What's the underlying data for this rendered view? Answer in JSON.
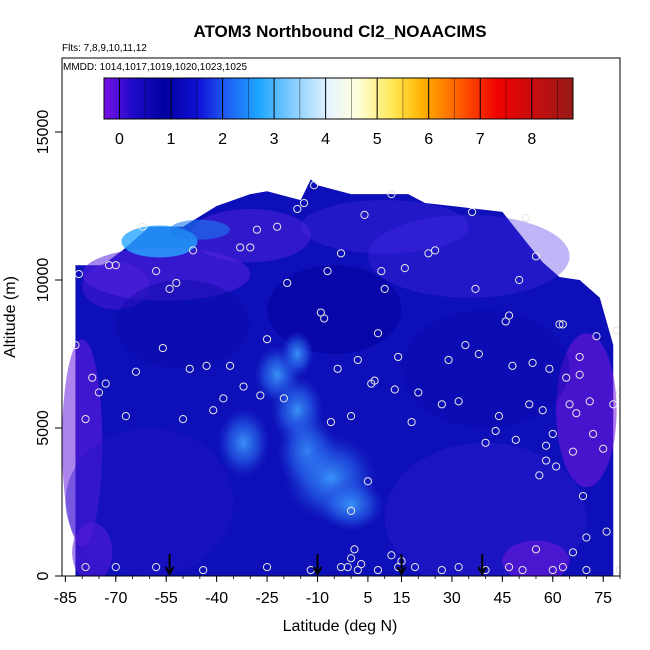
{
  "chart_data": {
    "type": "heatmap",
    "title": "ATOM3 Northbound Cl2_NOAACIMS",
    "subtitle_flights": "Flts: 7,8,9,10,11,12",
    "subtitle_dates": "MMDD: 1014,1017,1019,1020,1023,1025",
    "xlabel": "Latitude (deg N)",
    "ylabel": "Altitude (m)",
    "xlim": [
      -86,
      80
    ],
    "ylim": [
      0,
      17500
    ],
    "x_ticks": [
      -85,
      -70,
      -55,
      -40,
      -25,
      -10,
      5,
      15,
      30,
      45,
      60,
      75
    ],
    "x_tick_labels": [
      "-85",
      "-70",
      "-55",
      "-40",
      "-25",
      "-10",
      "5",
      "15",
      "30",
      "45",
      "60",
      "75"
    ],
    "y_ticks": [
      0,
      5000,
      10000,
      15000
    ],
    "y_tick_labels": [
      "0",
      "5000",
      "10000",
      "15000"
    ],
    "colorbar": {
      "range": [
        -0.3,
        8.8
      ],
      "ticks": [
        0,
        1,
        2,
        3,
        4,
        5,
        6,
        7,
        8
      ],
      "tick_labels": [
        "0",
        "1",
        "2",
        "3",
        "4",
        "5",
        "6",
        "7",
        "8"
      ]
    },
    "arrow_latitudes": [
      -54,
      -10,
      15,
      39
    ],
    "envelope": [
      [
        -82,
        10500
      ],
      [
        -74,
        10500
      ],
      [
        -68,
        11000
      ],
      [
        -60,
        11800
      ],
      [
        -50,
        11800
      ],
      [
        -40,
        12500
      ],
      [
        -30,
        12900
      ],
      [
        -25,
        13000
      ],
      [
        -15,
        12700
      ],
      [
        -12,
        13400
      ],
      [
        -10,
        13200
      ],
      [
        0,
        12900
      ],
      [
        10,
        12900
      ],
      [
        17,
        12900
      ],
      [
        22,
        12600
      ],
      [
        30,
        12500
      ],
      [
        45,
        12300
      ],
      [
        52,
        11300
      ],
      [
        57,
        10600
      ],
      [
        62,
        10100
      ],
      [
        68,
        10000
      ],
      [
        74,
        9400
      ],
      [
        78,
        7800
      ]
    ],
    "observations": [
      [
        -82,
        7800
      ],
      [
        -81,
        10200
      ],
      [
        -79,
        5300
      ],
      [
        -77,
        6700
      ],
      [
        -75,
        6200
      ],
      [
        -73,
        6500
      ],
      [
        -72,
        10500
      ],
      [
        -70,
        10500
      ],
      [
        -67,
        5400
      ],
      [
        -64,
        6900
      ],
      [
        -62,
        11800
      ],
      [
        -58,
        10300
      ],
      [
        -56,
        7700
      ],
      [
        -54,
        9700
      ],
      [
        -52,
        9900
      ],
      [
        -50,
        5300
      ],
      [
        -48,
        7000
      ],
      [
        -47,
        11000
      ],
      [
        -43,
        7100
      ],
      [
        -41,
        5600
      ],
      [
        -38,
        6000
      ],
      [
        -36,
        7100
      ],
      [
        -33,
        11100
      ],
      [
        -32,
        6400
      ],
      [
        -30,
        11100
      ],
      [
        -28,
        11700
      ],
      [
        -27,
        6100
      ],
      [
        -25,
        8000
      ],
      [
        -22,
        11800
      ],
      [
        -20,
        6000
      ],
      [
        -19,
        9900
      ],
      [
        -16,
        12400
      ],
      [
        -14,
        12600
      ],
      [
        -11,
        13200
      ],
      [
        -9,
        8900
      ],
      [
        -8,
        8700
      ],
      [
        -7,
        10300
      ],
      [
        -6,
        5200
      ],
      [
        -4,
        7000
      ],
      [
        -3,
        10900
      ],
      [
        0,
        5400
      ],
      [
        2,
        7300
      ],
      [
        4,
        12200
      ],
      [
        6,
        6500
      ],
      [
        7,
        6600
      ],
      [
        8,
        8200
      ],
      [
        9,
        10300
      ],
      [
        10,
        9700
      ],
      [
        12,
        12900
      ],
      [
        13,
        6300
      ],
      [
        14,
        7400
      ],
      [
        16,
        10400
      ],
      [
        18,
        5200
      ],
      [
        20,
        6200
      ],
      [
        23,
        10900
      ],
      [
        25,
        11000
      ],
      [
        27,
        5800
      ],
      [
        29,
        7300
      ],
      [
        32,
        5900
      ],
      [
        34,
        7800
      ],
      [
        36,
        12300
      ],
      [
        37,
        9700
      ],
      [
        38,
        7500
      ],
      [
        40,
        4500
      ],
      [
        43,
        4900
      ],
      [
        44,
        5400
      ],
      [
        46,
        8600
      ],
      [
        47,
        8800
      ],
      [
        48,
        7100
      ],
      [
        49,
        4600
      ],
      [
        50,
        10000
      ],
      [
        52,
        12100
      ],
      [
        53,
        5800
      ],
      [
        54,
        7200
      ],
      [
        55,
        10800
      ],
      [
        56,
        3400
      ],
      [
        57,
        5600
      ],
      [
        58,
        4400
      ],
      [
        58,
        3900
      ],
      [
        59,
        7000
      ],
      [
        60,
        4800
      ],
      [
        61,
        3700
      ],
      [
        62,
        8500
      ],
      [
        63,
        8500
      ],
      [
        64,
        6700
      ],
      [
        65,
        5800
      ],
      [
        66,
        4200
      ],
      [
        67,
        5500
      ],
      [
        68,
        6800
      ],
      [
        68,
        7400
      ],
      [
        69,
        2700
      ],
      [
        70,
        1300
      ],
      [
        71,
        5900
      ],
      [
        72,
        4800
      ],
      [
        73,
        8100
      ],
      [
        75,
        4300
      ],
      [
        76,
        1500
      ],
      [
        78,
        5800
      ],
      [
        79,
        8300
      ],
      [
        80,
        6200
      ],
      [
        0,
        2200
      ],
      [
        0,
        600
      ],
      [
        -1,
        300
      ],
      [
        1,
        900
      ],
      [
        2,
        200
      ],
      [
        5,
        3200
      ],
      [
        3,
        400
      ],
      [
        -3,
        300
      ],
      [
        -12,
        200
      ],
      [
        -25,
        300
      ],
      [
        -44,
        200
      ],
      [
        -58,
        300
      ],
      [
        -70,
        300
      ],
      [
        -79,
        300
      ],
      [
        12,
        700
      ],
      [
        14,
        300
      ],
      [
        19,
        300
      ],
      [
        27,
        200
      ],
      [
        32,
        300
      ],
      [
        40,
        200
      ],
      [
        47,
        300
      ],
      [
        51,
        200
      ],
      [
        55,
        900
      ],
      [
        60,
        200
      ],
      [
        63,
        300
      ],
      [
        66,
        800
      ],
      [
        70,
        200
      ],
      [
        80,
        200
      ],
      [
        15,
        500
      ],
      [
        8,
        200
      ]
    ]
  }
}
